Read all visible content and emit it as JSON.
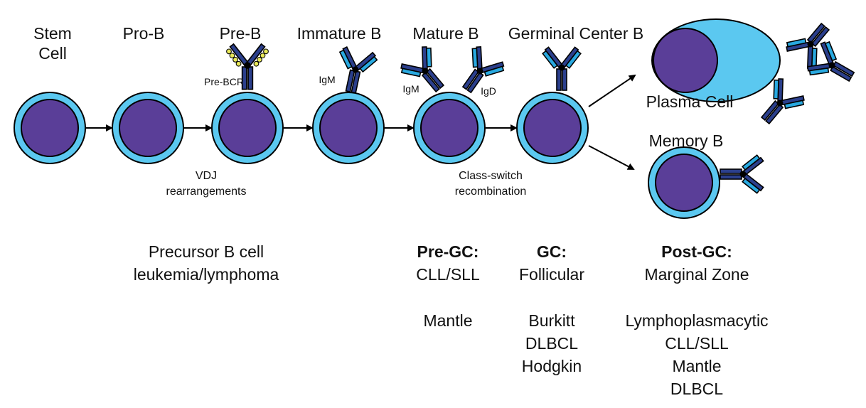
{
  "stages": {
    "stem_cell": "Stem\nCell",
    "pro_b": "Pro-B",
    "pre_b": "Pre-B",
    "immature_b": "Immature B",
    "mature_b": "Mature B",
    "germinal_center_b": "Germinal Center B",
    "plasma_cell": "Plasma Cell",
    "memory_b": "Memory B"
  },
  "receptor_labels": {
    "pre_bcr": "Pre-BCR",
    "igm_immature": "IgM",
    "igm_mature": "IgM",
    "igd_mature": "IgD"
  },
  "processes": {
    "vdj": "VDJ\nrearrangements",
    "class_switch": "Class-switch\nrecombination"
  },
  "lymphomas": {
    "precursor": "Precursor B cell\nleukemia/lymphoma",
    "pre_gc": {
      "title": "Pre-GC:",
      "items": "CLL/SLL\n\nMantle"
    },
    "gc": {
      "title": "GC:",
      "items": "Follicular\n\nBurkitt\nDLBCL\nHodgkin"
    },
    "post_gc": {
      "title": "Post-GC:",
      "items": "Marginal Zone\n\nLymphoplasmacytic\nCLL/SLL\nMantle\nDLBCL"
    }
  },
  "colors": {
    "membrane": "#5bc8f0",
    "nucleus": "#5a3e98",
    "outline": "#000000",
    "antibody_dark": "#2b3f8c",
    "antibody_light": "#29a9e0",
    "surrogate_light_chain": "#e8e85a"
  },
  "icons": [
    "b-cell-icon",
    "antibody-icon",
    "arrow-icon"
  ]
}
